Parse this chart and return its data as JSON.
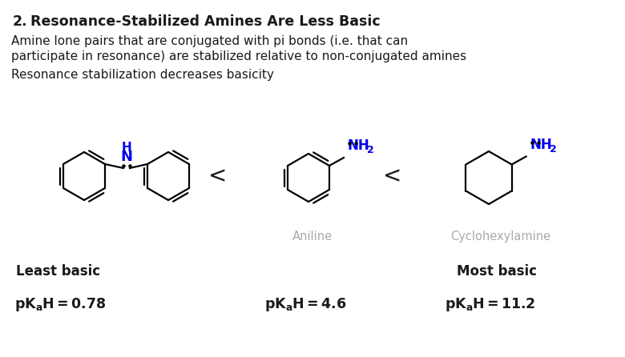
{
  "title_number": "2.",
  "title_text": "Resonance-Stabilized Amines Are Less Basic",
  "body_line1": "Amine lone pairs that are conjugated with pi bonds (i.e. that can",
  "body_line2": "participate in resonance) are stabilized relative to non-conjugated amines",
  "body_line3": "Resonance stabilization decreases basicity",
  "bg_color": "#ffffff",
  "text_color": "#1a1a1a",
  "blue_color": "#0000ee",
  "gray_color": "#aaaaaa",
  "label1": "Aniline",
  "label2": "Cyclohexylamine",
  "basic1": "Least basic",
  "basic2": "Most basic",
  "pka1": "0.78",
  "pka2": "4.6",
  "pka3": "11.2",
  "less_than": "<",
  "fig_width": 7.8,
  "fig_height": 4.46,
  "dpi": 100
}
